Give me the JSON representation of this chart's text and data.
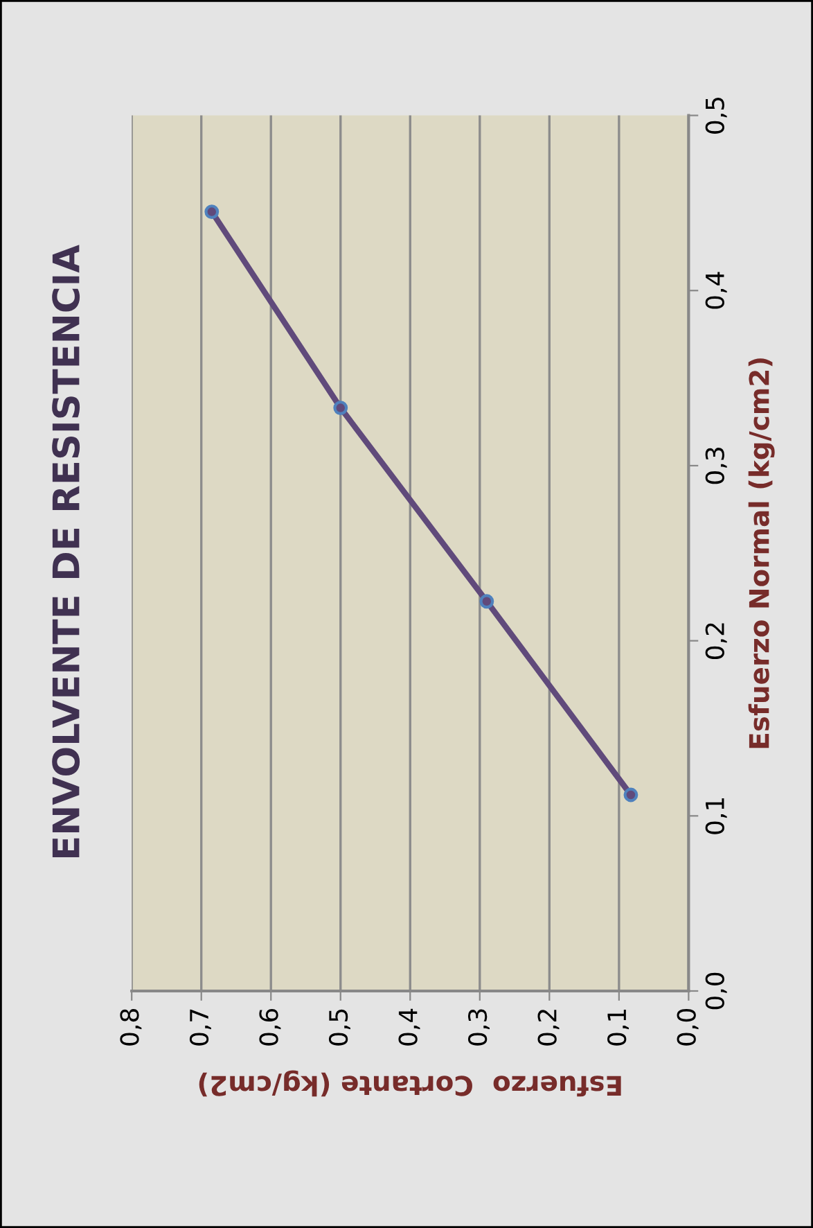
{
  "chart_data": {
    "type": "line",
    "title": "ENVOLVENTE DE RESISTENCIA",
    "xlabel": "Esfuerzo  Cortante (kg/cm2)",
    "ylabel": "Esfuerzo Normal (kg/cm2)",
    "x": [
      0.083,
      0.29,
      0.5,
      0.685
    ],
    "series": [
      {
        "color": "#604a7b",
        "values": [
          0.112,
          0.2225,
          0.333,
          0.445
        ]
      }
    ],
    "xlim": [
      0.8,
      0
    ],
    "ylim": [
      0,
      0.5
    ],
    "xticks": [
      {
        "value": 0.8,
        "label": "0,8"
      },
      {
        "value": 0.7,
        "label": "0,7"
      },
      {
        "value": 0.6,
        "label": "0,6"
      },
      {
        "value": 0.5,
        "label": "0,5"
      },
      {
        "value": 0.4,
        "label": "0,4"
      },
      {
        "value": 0.3,
        "label": "0,3"
      },
      {
        "value": 0.2,
        "label": "0,2"
      },
      {
        "value": 0.1,
        "label": "0,1"
      },
      {
        "value": 0,
        "label": "0,0"
      }
    ],
    "yticks": [
      {
        "value": 0,
        "label": "0,0"
      },
      {
        "value": 0.1,
        "label": "0,1"
      },
      {
        "value": 0.2,
        "label": "0,2"
      },
      {
        "value": 0.3,
        "label": "0,3"
      },
      {
        "value": 0.4,
        "label": "0,4"
      },
      {
        "value": 0.5,
        "label": "0,5"
      }
    ],
    "grid": "x",
    "marker": "circle",
    "line_style": "solid"
  }
}
